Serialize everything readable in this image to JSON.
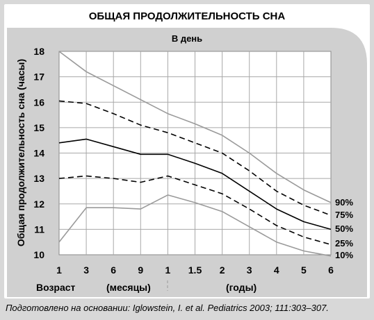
{
  "chart_data": {
    "type": "line",
    "title": "ОБЩАЯ ПРОДОЛЖИТЕЛЬНОСТЬ СНА",
    "subtitle": "В день",
    "ylabel": "Общая продолжительность сна (часы)",
    "ylim": [
      10,
      18
    ],
    "yticks": [
      "10",
      "11",
      "12",
      "13",
      "14",
      "15",
      "16",
      "17",
      "18"
    ],
    "categories": [
      "1",
      "3",
      "6",
      "9",
      "1",
      "1.5",
      "2",
      "3",
      "4",
      "5",
      "6"
    ],
    "age_label": "Возраст",
    "months_label": "(месяцы)",
    "years_label": "(годы)",
    "grid": true,
    "series": [
      {
        "name": "90%",
        "dashed": false,
        "color": "#9a9a9a",
        "values": [
          18.0,
          17.2,
          16.65,
          16.1,
          15.55,
          15.15,
          14.7,
          14.0,
          13.2,
          12.55,
          12.05
        ]
      },
      {
        "name": "75%",
        "dashed": true,
        "color": "#000000",
        "values": [
          16.05,
          15.95,
          15.55,
          15.1,
          14.8,
          14.4,
          14.0,
          13.3,
          12.5,
          11.95,
          11.55
        ]
      },
      {
        "name": "50%",
        "dashed": false,
        "color": "#000000",
        "values": [
          14.4,
          14.55,
          14.25,
          13.95,
          13.95,
          13.6,
          13.2,
          12.5,
          11.8,
          11.3,
          11.0
        ]
      },
      {
        "name": "25%",
        "dashed": true,
        "color": "#000000",
        "values": [
          13.0,
          13.1,
          13.0,
          12.85,
          13.1,
          12.75,
          12.4,
          11.8,
          11.15,
          10.7,
          10.4
        ]
      },
      {
        "name": "10%",
        "dashed": false,
        "color": "#9a9a9a",
        "values": [
          10.5,
          11.85,
          11.85,
          11.8,
          12.35,
          12.05,
          11.7,
          11.1,
          10.5,
          10.15,
          9.95
        ]
      }
    ]
  },
  "caption": "Подготовлено на основании: Iglowstein, I. et al. Pediatrics 2003; 111:303–307."
}
